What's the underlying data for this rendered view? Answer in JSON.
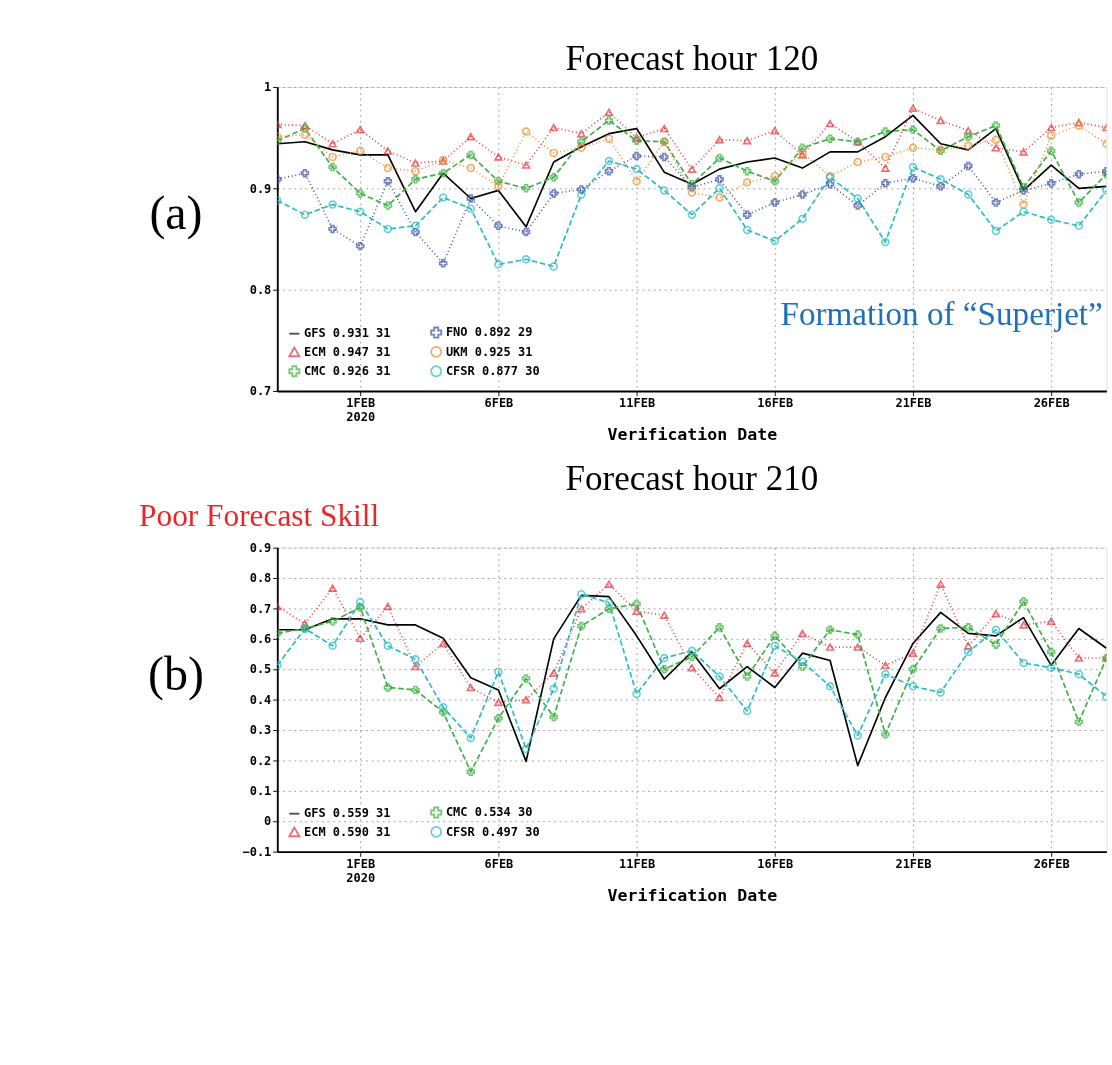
{
  "chart_data": [
    {
      "type": "line",
      "title": "Forecast hour 120",
      "xlabel": "Verification Date",
      "grid": true,
      "legend": "bottom left",
      "x": [
        "2020-01-29",
        "2020-01-30",
        "2020-01-31",
        "2020-02-01",
        "2020-02-02",
        "2020-02-03",
        "2020-02-04",
        "2020-02-05",
        "2020-02-06",
        "2020-02-07",
        "2020-02-08",
        "2020-02-09",
        "2020-02-10",
        "2020-02-11",
        "2020-02-12",
        "2020-02-13",
        "2020-02-14",
        "2020-02-15",
        "2020-02-16",
        "2020-02-17",
        "2020-02-18",
        "2020-02-19",
        "2020-02-20",
        "2020-02-21",
        "2020-02-22",
        "2020-02-23",
        "2020-02-24",
        "2020-02-25",
        "2020-02-26",
        "2020-02-27",
        "2020-02-28"
      ],
      "xlim": [
        "2020-01-29",
        "2020-02-28"
      ],
      "xticks": [
        {
          "value": "2020-02-01",
          "label": "1FEB 2020"
        },
        {
          "value": "2020-02-06",
          "label": "6FEB"
        },
        {
          "value": "2020-02-11",
          "label": "11FEB"
        },
        {
          "value": "2020-02-16",
          "label": "16FEB"
        },
        {
          "value": "2020-02-21",
          "label": "21FEB"
        },
        {
          "value": "2020-02-26",
          "label": "26FEB"
        }
      ],
      "ylim": [
        0.7,
        1
      ],
      "yticks": [
        0.7,
        0.8,
        0.9,
        1
      ],
      "series": [
        {
          "name": "GFS 0.931 31",
          "color": "#000000",
          "marker": "none",
          "line_style": "solid",
          "values": [
            0.944,
            0.946,
            0.938,
            0.933,
            0.933,
            0.877,
            0.915,
            0.89,
            0.898,
            0.862,
            0.926,
            0.941,
            0.954,
            0.959,
            0.916,
            0.904,
            0.919,
            0.926,
            0.93,
            0.92,
            0.936,
            0.936,
            0.951,
            0.972,
            0.944,
            0.938,
            0.959,
            0.898,
            0.923,
            0.9,
            0.902
          ]
        },
        {
          "name": "ECM 0.947 31",
          "color": "#e8333a",
          "marker": "triangle",
          "line_style": "dotted",
          "values": [
            0.963,
            0.962,
            0.944,
            0.958,
            0.937,
            0.925,
            0.927,
            0.951,
            0.931,
            0.923,
            0.96,
            0.954,
            0.975,
            0.95,
            0.959,
            0.919,
            0.948,
            0.947,
            0.957,
            0.933,
            0.964,
            0.946,
            0.92,
            0.979,
            0.967,
            0.957,
            0.94,
            0.936,
            0.96,
            0.965,
            0.96
          ]
        },
        {
          "name": "CMC 0.926 31",
          "color": "#3cb043",
          "marker": "cross",
          "line_style": "dashed",
          "values": [
            0.947,
            0.959,
            0.921,
            0.895,
            0.883,
            0.909,
            0.915,
            0.933,
            0.907,
            0.9,
            0.911,
            0.946,
            0.967,
            0.947,
            0.946,
            0.904,
            0.93,
            0.917,
            0.907,
            0.94,
            0.949,
            0.946,
            0.956,
            0.958,
            0.937,
            0.951,
            0.962,
            0.901,
            0.937,
            0.886,
            0.914
          ]
        },
        {
          "name": "FNO 0.892 29",
          "color": "#3a4fa8",
          "marker": "cross",
          "line_style": "dotted",
          "values": [
            0.909,
            0.915,
            0.86,
            0.843,
            0.907,
            0.857,
            0.826,
            0.89,
            0.863,
            0.857,
            0.895,
            0.899,
            0.917,
            0.932,
            0.931,
            0.901,
            0.909,
            0.874,
            0.886,
            0.894,
            0.904,
            0.883,
            0.905,
            0.91,
            0.902,
            0.922,
            0.886,
            0.898,
            0.905,
            0.914,
            0.917
          ]
        },
        {
          "name": "UKM 0.925 31",
          "color": "#f08a2c",
          "marker": "circle",
          "line_style": "dotted",
          "values": [
            0.951,
            0.953,
            0.931,
            0.937,
            0.92,
            0.917,
            0.928,
            0.92,
            0.902,
            0.956,
            0.935,
            0.94,
            0.949,
            0.907,
            0.946,
            0.896,
            0.891,
            0.906,
            0.912,
            0.935,
            0.912,
            0.926,
            0.931,
            0.94,
            0.938,
            0.942,
            0.948,
            0.884,
            0.952,
            0.962,
            0.944
          ]
        },
        {
          "name": "CFSR 0.877 30",
          "color": "#29bcc4",
          "marker": "circle",
          "line_style": "dashed",
          "values": [
            0.888,
            0.874,
            0.884,
            0.877,
            0.86,
            0.863,
            0.891,
            0.88,
            0.825,
            0.83,
            0.823,
            0.894,
            0.927,
            0.919,
            0.898,
            0.874,
            0.9,
            0.859,
            0.848,
            0.87,
            0.911,
            0.89,
            0.847,
            0.921,
            0.909,
            0.894,
            0.858,
            0.877,
            0.869,
            0.863,
            0.898
          ]
        }
      ],
      "annotations": [
        "(a)",
        "Formation of “Superjet”"
      ]
    },
    {
      "type": "line",
      "title": "Forecast hour 210",
      "xlabel": "Verification Date",
      "grid": true,
      "legend": "bottom left",
      "x": [
        "2020-01-29",
        "2020-01-30",
        "2020-01-31",
        "2020-02-01",
        "2020-02-02",
        "2020-02-03",
        "2020-02-04",
        "2020-02-05",
        "2020-02-06",
        "2020-02-07",
        "2020-02-08",
        "2020-02-09",
        "2020-02-10",
        "2020-02-11",
        "2020-02-12",
        "2020-02-13",
        "2020-02-14",
        "2020-02-15",
        "2020-02-16",
        "2020-02-17",
        "2020-02-18",
        "2020-02-19",
        "2020-02-20",
        "2020-02-21",
        "2020-02-22",
        "2020-02-23",
        "2020-02-24",
        "2020-02-25",
        "2020-02-26",
        "2020-02-27",
        "2020-02-28"
      ],
      "xlim": [
        "2020-01-29",
        "2020-02-28"
      ],
      "xticks": [
        {
          "value": "2020-02-01",
          "label": "1FEB 2020"
        },
        {
          "value": "2020-02-06",
          "label": "6FEB"
        },
        {
          "value": "2020-02-11",
          "label": "11FEB"
        },
        {
          "value": "2020-02-16",
          "label": "16FEB"
        },
        {
          "value": "2020-02-21",
          "label": "21FEB"
        },
        {
          "value": "2020-02-26",
          "label": "26FEB"
        }
      ],
      "ylim": [
        -0.1,
        0.9
      ],
      "yticks": [
        -0.1,
        0,
        0.1,
        0.2,
        0.3,
        0.4,
        0.5,
        0.6,
        0.7,
        0.8,
        0.9
      ],
      "series": [
        {
          "name": "GFS 0.559 31",
          "color": "#000000",
          "marker": "none",
          "line_style": "solid",
          "values": [
            0.63,
            0.63,
            0.666,
            0.666,
            0.646,
            0.646,
            0.602,
            0.472,
            0.432,
            0.197,
            0.6,
            0.743,
            0.739,
            0.61,
            0.468,
            0.557,
            0.436,
            0.509,
            0.44,
            0.553,
            0.529,
            0.183,
            0.407,
            0.585,
            0.687,
            0.618,
            0.61,
            0.67,
            0.513,
            0.634,
            0.569
          ]
        },
        {
          "name": "ECM 0.590 31",
          "color": "#e8333a",
          "marker": "triangle",
          "line_style": "dotted",
          "values": [
            0.707,
            0.65,
            0.767,
            0.602,
            0.707,
            0.509,
            0.585,
            0.44,
            0.391,
            0.4,
            0.488,
            0.699,
            0.78,
            0.691,
            0.678,
            0.505,
            0.407,
            0.585,
            0.488,
            0.618,
            0.573,
            0.573,
            0.513,
            0.553,
            0.78,
            0.577,
            0.683,
            0.646,
            0.658,
            0.537,
            0.537
          ]
        },
        {
          "name": "CMC 0.534 30",
          "color": "#3cb043",
          "marker": "cross",
          "line_style": "dashed",
          "values": [
            0.618,
            0.634,
            0.658,
            0.703,
            0.44,
            0.432,
            0.359,
            0.163,
            0.339,
            0.47,
            0.343,
            0.642,
            0.699,
            0.715,
            0.5,
            0.541,
            0.638,
            0.476,
            0.61,
            0.509,
            0.63,
            0.614,
            0.286,
            0.5,
            0.634,
            0.638,
            0.581,
            0.723,
            0.557,
            0.327,
            0.537
          ]
        },
        {
          "name": "CFSR 0.497 30",
          "color": "#29bcc4",
          "marker": "circle",
          "line_style": "dashed",
          "values": [
            0.513,
            0.634,
            0.577,
            0.721,
            0.577,
            0.533,
            0.375,
            0.274,
            0.492,
            0.238,
            0.436,
            0.747,
            0.719,
            0.419,
            0.537,
            0.561,
            0.476,
            0.363,
            0.577,
            0.525,
            0.444,
            0.282,
            0.484,
            0.444,
            0.424,
            0.557,
            0.63,
            0.521,
            0.505,
            0.484,
            0.41
          ]
        }
      ],
      "annotations": [
        "(b)",
        "Poor Forecast Skill"
      ]
    }
  ]
}
